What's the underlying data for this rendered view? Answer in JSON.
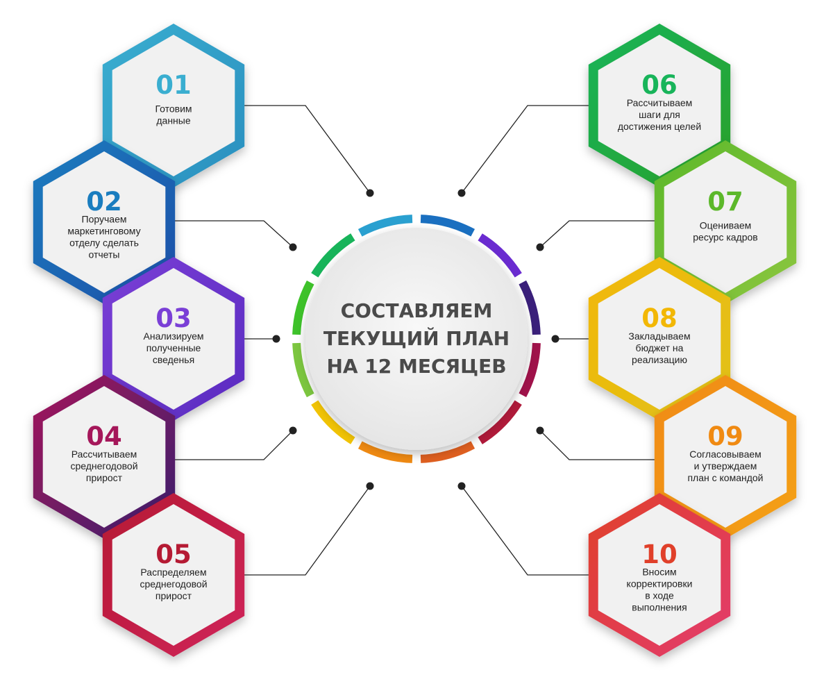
{
  "center": {
    "lines": [
      "СОСТАВЛЯЕМ",
      "ТЕКУЩИЙ ПЛАН",
      "НА 12 МЕСЯЦЕВ"
    ]
  },
  "steps": [
    {
      "number": "01",
      "lines": [
        "Готовим",
        "данные"
      ],
      "color": "#3aaed0",
      "color2": "#2a8fbf"
    },
    {
      "number": "02",
      "lines": [
        "Поручаем",
        "маркетинговому",
        "отделу сделать",
        "отчеты"
      ],
      "color": "#1a7dbf",
      "color2": "#1c4fa8"
    },
    {
      "number": "03",
      "lines": [
        "Анализируем",
        "полученные",
        "сведенья"
      ],
      "color": "#7a3fd6",
      "color2": "#5a2bc0"
    },
    {
      "number": "04",
      "lines": [
        "Рассчитываем",
        "среднегодовой",
        "прирост"
      ],
      "color": "#a5175a",
      "color2": "#3a1f6e"
    },
    {
      "number": "05",
      "lines": [
        "Распределяем",
        "среднегодовой",
        "прирост"
      ],
      "color": "#b51a33",
      "color2": "#d0245a"
    },
    {
      "number": "06",
      "lines": [
        "Рассчитываем",
        "шаги для",
        "достижения целей"
      ],
      "color": "#18b45a",
      "color2": "#2aa02a"
    },
    {
      "number": "07",
      "lines": [
        "Оцениваем",
        "ресурс кадров"
      ],
      "color": "#5cb82a",
      "color2": "#8cc63f"
    },
    {
      "number": "08",
      "lines": [
        "Закладываем",
        "бюджет на",
        "реализацию"
      ],
      "color": "#f2b705",
      "color2": "#e0c21a"
    },
    {
      "number": "09",
      "lines": [
        "Согласовываем",
        "и утверждаем",
        "план с командой"
      ],
      "color": "#f08a12",
      "color2": "#f4a11a"
    },
    {
      "number": "10",
      "lines": [
        "Вносим",
        "корректировки",
        "в ходе",
        "выполнения"
      ],
      "color": "#e0402a",
      "color2": "#e33b6e"
    }
  ],
  "ring_colors": [
    "#2aa0d0",
    "#1a6fc0",
    "#6a2bd0",
    "#3a1f7a",
    "#a0124a",
    "#b01a3a",
    "#e06020",
    "#f08a12",
    "#f2c405",
    "#7cc63f",
    "#3ec22a",
    "#18b45a"
  ]
}
